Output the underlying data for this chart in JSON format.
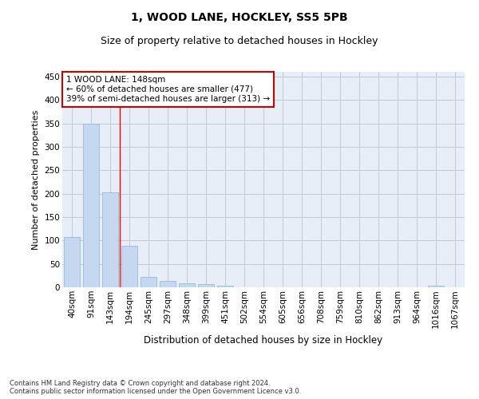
{
  "title1": "1, WOOD LANE, HOCKLEY, SS5 5PB",
  "title2": "Size of property relative to detached houses in Hockley",
  "xlabel": "Distribution of detached houses by size in Hockley",
  "ylabel": "Number of detached properties",
  "categories": [
    "40sqm",
    "91sqm",
    "143sqm",
    "194sqm",
    "245sqm",
    "297sqm",
    "348sqm",
    "399sqm",
    "451sqm",
    "502sqm",
    "554sqm",
    "605sqm",
    "656sqm",
    "708sqm",
    "759sqm",
    "810sqm",
    "862sqm",
    "913sqm",
    "964sqm",
    "1016sqm",
    "1067sqm"
  ],
  "values": [
    107,
    349,
    202,
    88,
    23,
    13,
    8,
    6,
    4,
    0,
    0,
    0,
    0,
    0,
    0,
    0,
    0,
    0,
    0,
    4,
    0
  ],
  "bar_color": "#c5d8f0",
  "bar_edge_color": "#8ab4d9",
  "grid_color": "#c0c8d8",
  "bg_color": "#e8eef8",
  "redline_x": 2.5,
  "annotation_text": "1 WOOD LANE: 148sqm\n← 60% of detached houses are smaller (477)\n39% of semi-detached houses are larger (313) →",
  "annotation_box_color": "#ffffff",
  "annotation_border_color": "#cc0000",
  "footnote": "Contains HM Land Registry data © Crown copyright and database right 2024.\nContains public sector information licensed under the Open Government Licence v3.0.",
  "ylim": [
    0,
    460
  ],
  "yticks": [
    0,
    50,
    100,
    150,
    200,
    250,
    300,
    350,
    400,
    450
  ],
  "title1_fontsize": 10,
  "title2_fontsize": 9,
  "tick_fontsize": 7.5,
  "ylabel_fontsize": 8,
  "xlabel_fontsize": 8.5,
  "footnote_fontsize": 6,
  "annot_fontsize": 7.5
}
